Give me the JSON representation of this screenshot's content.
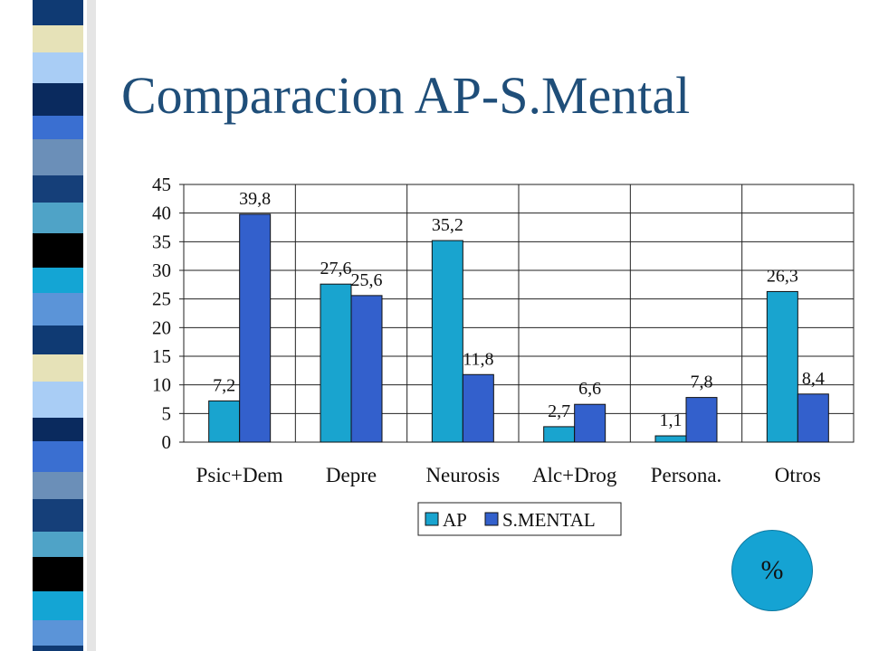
{
  "slide": {
    "title": "Comparacion AP-S.Mental",
    "badge_text": "%"
  },
  "colors": {
    "title": "#1f4e79",
    "series_ap": "#19a4cf",
    "series_smental": "#3360cc",
    "badge": "#15a3d3",
    "strip_palette": [
      "#4fa3c7",
      "#0f3a73",
      "#3a6fd1",
      "#000000",
      "#e6e2b8",
      "#6b8fb8",
      "#14a5d4",
      "#a9cdf5",
      "#153f79",
      "#5b94d8",
      "#0a2a5e"
    ]
  },
  "chart_data": {
    "type": "bar",
    "categories": [
      "Psic+Dem",
      "Depre",
      "Neurosis",
      "Alc+Drog",
      "Persona.",
      "Otros"
    ],
    "series": [
      {
        "name": "AP",
        "values": [
          7.2,
          27.6,
          35.2,
          2.7,
          1.1,
          26.3
        ],
        "labels": [
          "7,2",
          "27,6",
          "35,2",
          "2,7",
          "1,1",
          "26,3"
        ]
      },
      {
        "name": "S.MENTAL",
        "values": [
          39.8,
          25.6,
          11.8,
          6.6,
          7.8,
          8.4
        ],
        "labels": [
          "39,8",
          "25,6",
          "11,8",
          "6,6",
          "7,8",
          "8,4"
        ]
      }
    ],
    "yticks": [
      "0",
      "5",
      "10",
      "15",
      "20",
      "25",
      "30",
      "35",
      "40",
      "45"
    ],
    "ylim": [
      0,
      45
    ],
    "title": "",
    "xlabel": "",
    "ylabel": "",
    "grid": true,
    "legend_position": "bottom"
  }
}
